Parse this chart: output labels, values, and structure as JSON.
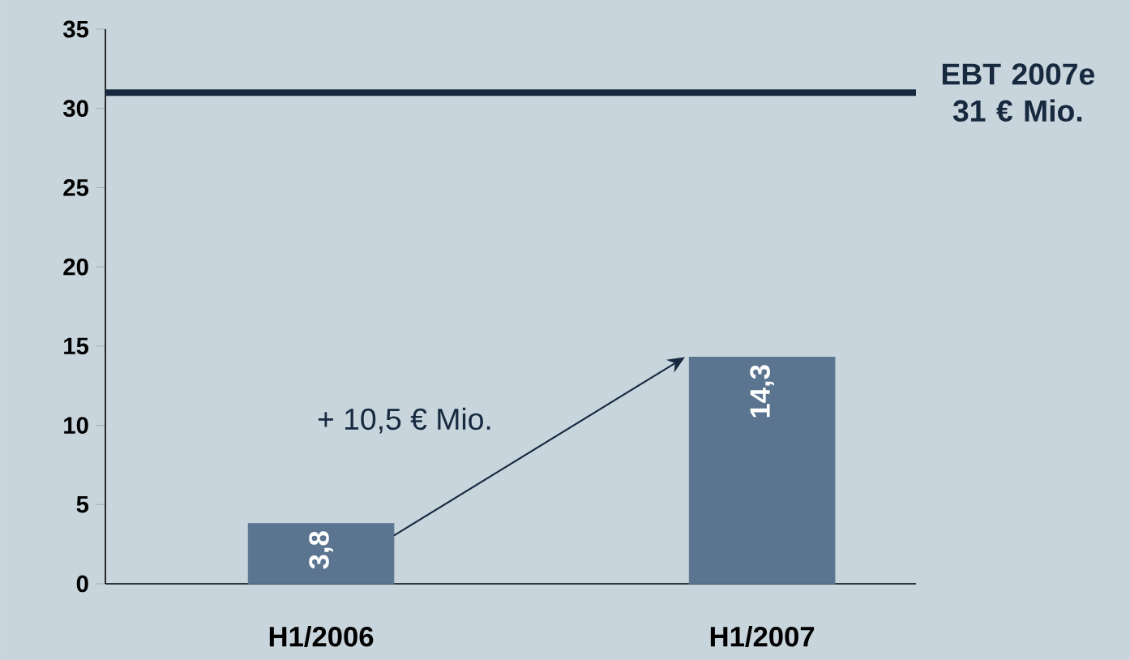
{
  "chart_data": {
    "type": "bar",
    "categories": [
      "H1/2006",
      "H1/2007"
    ],
    "values": [
      3.8,
      14.3
    ],
    "value_labels": [
      "3,8",
      "14,3"
    ],
    "color": "#5b7590",
    "ylim": [
      0,
      35
    ],
    "yticks": [
      0,
      5,
      10,
      15,
      20,
      25,
      30,
      35
    ],
    "ref_lines": [
      {
        "axis": "y",
        "value": 31,
        "label": "EBT 2007e 31 € Mio.",
        "color": "#16293f"
      }
    ],
    "annotations": [
      "+ 10,5 € Mio."
    ]
  }
}
